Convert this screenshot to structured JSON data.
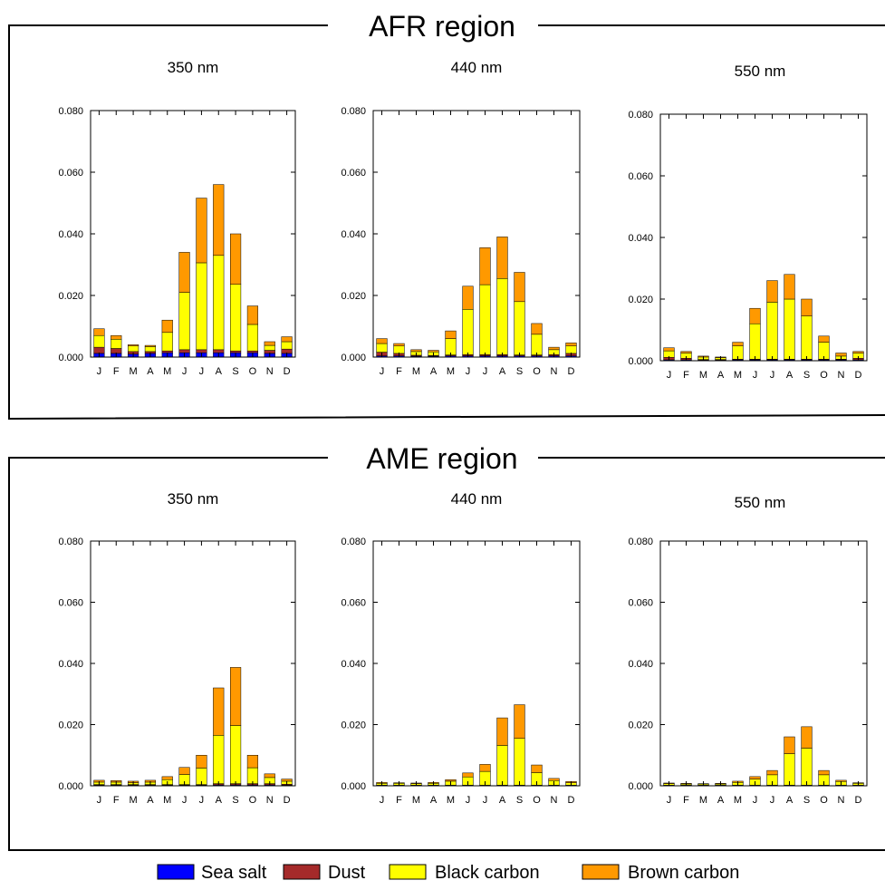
{
  "colors": {
    "sea_salt": "#0000ff",
    "dust": "#a52a2a",
    "black_carbon": "#ffff00",
    "brown_carbon": "#ff9900",
    "frame": "#000000"
  },
  "legend": [
    {
      "key": "sea_salt",
      "label": "Sea salt"
    },
    {
      "key": "dust",
      "label": "Dust"
    },
    {
      "key": "black_carbon",
      "label": "Black carbon"
    },
    {
      "key": "brown_carbon",
      "label": "Brown carbon"
    }
  ],
  "regions": [
    {
      "title": "AFR region"
    },
    {
      "title": "AME region"
    }
  ],
  "chart_data": [
    {
      "type": "bar",
      "stacked": true,
      "region": "AFR region",
      "title": "350 nm",
      "categories": [
        "J",
        "F",
        "M",
        "A",
        "M",
        "J",
        "J",
        "A",
        "S",
        "O",
        "N",
        "D"
      ],
      "ylim": [
        0,
        0.08
      ],
      "yticks": [
        "0.000",
        "0.020",
        "0.040",
        "0.060",
        "0.080"
      ],
      "series": [
        {
          "name": "Sea salt",
          "values": [
            0.0012,
            0.0012,
            0.001,
            0.0012,
            0.0014,
            0.0014,
            0.0014,
            0.0014,
            0.0014,
            0.0014,
            0.0012,
            0.0012
          ]
        },
        {
          "name": "Dust",
          "values": [
            0.002,
            0.0016,
            0.0008,
            0.0006,
            0.0006,
            0.001,
            0.001,
            0.001,
            0.0006,
            0.0006,
            0.001,
            0.0014
          ]
        },
        {
          "name": "Black carbon",
          "values": [
            0.0038,
            0.003,
            0.0018,
            0.0016,
            0.006,
            0.0186,
            0.0282,
            0.0306,
            0.0216,
            0.0086,
            0.0016,
            0.0024
          ]
        },
        {
          "name": "Brown carbon",
          "values": [
            0.0022,
            0.0012,
            0.0004,
            0.0004,
            0.004,
            0.013,
            0.021,
            0.023,
            0.0164,
            0.006,
            0.0012,
            0.0016
          ]
        }
      ]
    },
    {
      "type": "bar",
      "stacked": true,
      "region": "AFR region",
      "title": "440 nm",
      "categories": [
        "J",
        "F",
        "M",
        "A",
        "M",
        "J",
        "J",
        "A",
        "S",
        "O",
        "N",
        "D"
      ],
      "ylim": [
        0,
        0.08
      ],
      "yticks": [
        "0.000",
        "0.020",
        "0.040",
        "0.060",
        "0.080"
      ],
      "series": [
        {
          "name": "Sea salt",
          "values": [
            0.0004,
            0.0004,
            0.0003,
            0.0003,
            0.0004,
            0.0004,
            0.0004,
            0.0004,
            0.0004,
            0.0004,
            0.0004,
            0.0004
          ]
        },
        {
          "name": "Dust",
          "values": [
            0.0012,
            0.0008,
            0.0003,
            0.0002,
            0.0003,
            0.0004,
            0.0004,
            0.0004,
            0.0003,
            0.0003,
            0.0004,
            0.0008
          ]
        },
        {
          "name": "Black carbon",
          "values": [
            0.0028,
            0.0024,
            0.0012,
            0.0012,
            0.0053,
            0.0147,
            0.0227,
            0.0247,
            0.0173,
            0.0067,
            0.0016,
            0.0024
          ]
        },
        {
          "name": "Brown carbon",
          "values": [
            0.0016,
            0.0008,
            0.0006,
            0.0005,
            0.0025,
            0.0075,
            0.012,
            0.0135,
            0.0095,
            0.0035,
            0.0008,
            0.001
          ]
        }
      ]
    },
    {
      "type": "bar",
      "stacked": true,
      "region": "AFR region",
      "title": "550 nm",
      "categories": [
        "J",
        "F",
        "M",
        "A",
        "M",
        "J",
        "J",
        "A",
        "S",
        "O",
        "N",
        "D"
      ],
      "ylim": [
        0,
        0.08
      ],
      "yticks": [
        "0.000",
        "0.020",
        "0.040",
        "0.060",
        "0.080"
      ],
      "series": [
        {
          "name": "Sea salt",
          "values": [
            0.0003,
            0.0003,
            0.0002,
            0.0002,
            0.0003,
            0.0003,
            0.0003,
            0.0003,
            0.0003,
            0.0003,
            0.0003,
            0.0003
          ]
        },
        {
          "name": "Dust",
          "values": [
            0.0008,
            0.0005,
            0.0002,
            0.0002,
            0.0002,
            0.0002,
            0.0002,
            0.0002,
            0.0002,
            0.0002,
            0.0002,
            0.0005
          ]
        },
        {
          "name": "Black carbon",
          "values": [
            0.0021,
            0.0017,
            0.0008,
            0.0006,
            0.0043,
            0.0115,
            0.0185,
            0.0195,
            0.014,
            0.0055,
            0.001,
            0.0017
          ]
        },
        {
          "name": "Brown carbon",
          "values": [
            0.001,
            0.0005,
            0.0003,
            0.0002,
            0.0012,
            0.005,
            0.007,
            0.008,
            0.0055,
            0.002,
            0.001,
            0.0005
          ]
        }
      ]
    },
    {
      "type": "bar",
      "stacked": true,
      "region": "AME region",
      "title": "350 nm",
      "categories": [
        "J",
        "F",
        "M",
        "A",
        "M",
        "J",
        "J",
        "A",
        "S",
        "O",
        "N",
        "D"
      ],
      "ylim": [
        0,
        0.08
      ],
      "yticks": [
        "0.000",
        "0.020",
        "0.040",
        "0.060",
        "0.080"
      ],
      "series": [
        {
          "name": "Sea salt",
          "values": [
            0.0002,
            0.0002,
            0.0002,
            0.0002,
            0.0002,
            0.0002,
            0.0002,
            0.0003,
            0.0003,
            0.0003,
            0.0003,
            0.0002
          ]
        },
        {
          "name": "Dust",
          "values": [
            0.0002,
            0.0002,
            0.0002,
            0.0002,
            0.0002,
            0.0002,
            0.0002,
            0.0004,
            0.0004,
            0.0004,
            0.0004,
            0.0003
          ]
        },
        {
          "name": "Black carbon",
          "values": [
            0.0008,
            0.0008,
            0.0006,
            0.0008,
            0.0016,
            0.0033,
            0.0054,
            0.0158,
            0.019,
            0.0052,
            0.002,
            0.001
          ]
        },
        {
          "name": "Brown carbon",
          "values": [
            0.0006,
            0.0005,
            0.0005,
            0.0006,
            0.001,
            0.0023,
            0.0042,
            0.0155,
            0.019,
            0.0041,
            0.0012,
            0.0007
          ]
        }
      ]
    },
    {
      "type": "bar",
      "stacked": true,
      "region": "AME region",
      "title": "440 nm",
      "categories": [
        "J",
        "F",
        "M",
        "A",
        "M",
        "J",
        "J",
        "A",
        "S",
        "O",
        "N",
        "D"
      ],
      "ylim": [
        0,
        0.08
      ],
      "yticks": [
        "0.000",
        "0.020",
        "0.040",
        "0.060",
        "0.080"
      ],
      "series": [
        {
          "name": "Sea salt",
          "values": [
            0.0001,
            0.0001,
            0.0001,
            0.0001,
            0.0001,
            0.0001,
            0.0001,
            0.0001,
            0.0001,
            0.0001,
            0.0001,
            0.0001
          ]
        },
        {
          "name": "Dust",
          "values": [
            0.0001,
            0.0001,
            0.0001,
            0.0001,
            0.0001,
            0.0001,
            0.0001,
            0.0001,
            0.0001,
            0.0001,
            0.0001,
            0.0001
          ]
        },
        {
          "name": "Black carbon",
          "values": [
            0.0006,
            0.0006,
            0.0005,
            0.0006,
            0.0013,
            0.0027,
            0.0045,
            0.013,
            0.0153,
            0.0041,
            0.0015,
            0.0008
          ]
        },
        {
          "name": "Brown carbon",
          "values": [
            0.0003,
            0.0002,
            0.0002,
            0.0003,
            0.0005,
            0.0013,
            0.0023,
            0.009,
            0.011,
            0.0025,
            0.0007,
            0.0004
          ]
        }
      ]
    },
    {
      "type": "bar",
      "stacked": true,
      "region": "AME region",
      "title": "550 nm",
      "categories": [
        "J",
        "F",
        "M",
        "A",
        "M",
        "J",
        "J",
        "A",
        "S",
        "O",
        "N",
        "D"
      ],
      "ylim": [
        0,
        0.08
      ],
      "yticks": [
        "0.000",
        "0.020",
        "0.040",
        "0.060",
        "0.080"
      ],
      "series": [
        {
          "name": "Sea salt",
          "values": [
            0.0001,
            0.0001,
            0.0001,
            0.0001,
            0.0001,
            0.0001,
            0.0001,
            0.0001,
            0.0001,
            0.0001,
            0.0001,
            0.0001
          ]
        },
        {
          "name": "Dust",
          "values": [
            0.0001,
            0.0001,
            0.0001,
            0.0001,
            0.0001,
            0.0001,
            0.0001,
            0.0001,
            0.0001,
            0.0001,
            0.0001,
            0.0001
          ]
        },
        {
          "name": "Black carbon",
          "values": [
            0.0005,
            0.0004,
            0.0004,
            0.0004,
            0.0009,
            0.002,
            0.0034,
            0.0103,
            0.0121,
            0.0034,
            0.0012,
            0.0006
          ]
        },
        {
          "name": "Brown carbon",
          "values": [
            0.0002,
            0.0002,
            0.0001,
            0.0002,
            0.0004,
            0.0008,
            0.0014,
            0.0055,
            0.007,
            0.0014,
            0.0004,
            0.0002
          ]
        }
      ]
    }
  ]
}
